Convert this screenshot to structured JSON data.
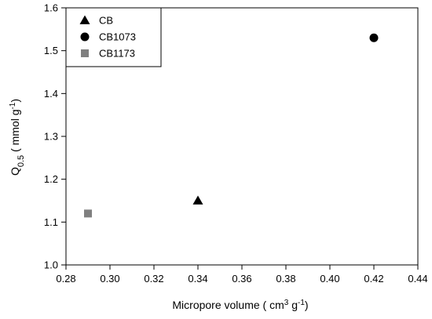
{
  "chart_data": {
    "type": "scatter",
    "title": "",
    "xlabel": {
      "main": "Micropore volume ( cm",
      "sup": "3",
      "mid": " g",
      "sup2": "-1",
      "end": ")"
    },
    "ylabel": {
      "main": "Q",
      "sub": "0.5",
      "mid": " ( mmol g",
      "sup": "-1",
      "end": ")"
    },
    "xlim": [
      0.28,
      0.44
    ],
    "ylim": [
      1.0,
      1.6
    ],
    "xticks": [
      "0.28",
      "0.30",
      "0.32",
      "0.34",
      "0.36",
      "0.38",
      "0.40",
      "0.42",
      "0.44"
    ],
    "yticks": [
      "1.0",
      "1.1",
      "1.2",
      "1.3",
      "1.4",
      "1.5",
      "1.6"
    ],
    "grid": false,
    "legend_position": "top-left",
    "series": [
      {
        "name": "CB",
        "marker": "triangle",
        "color": "#000000",
        "x": [
          0.34
        ],
        "y": [
          1.15
        ]
      },
      {
        "name": "CB1073",
        "marker": "circle",
        "color": "#000000",
        "x": [
          0.42
        ],
        "y": [
          1.53
        ]
      },
      {
        "name": "CB1173",
        "marker": "square",
        "color": "#808080",
        "x": [
          0.29
        ],
        "y": [
          1.12
        ]
      }
    ]
  }
}
